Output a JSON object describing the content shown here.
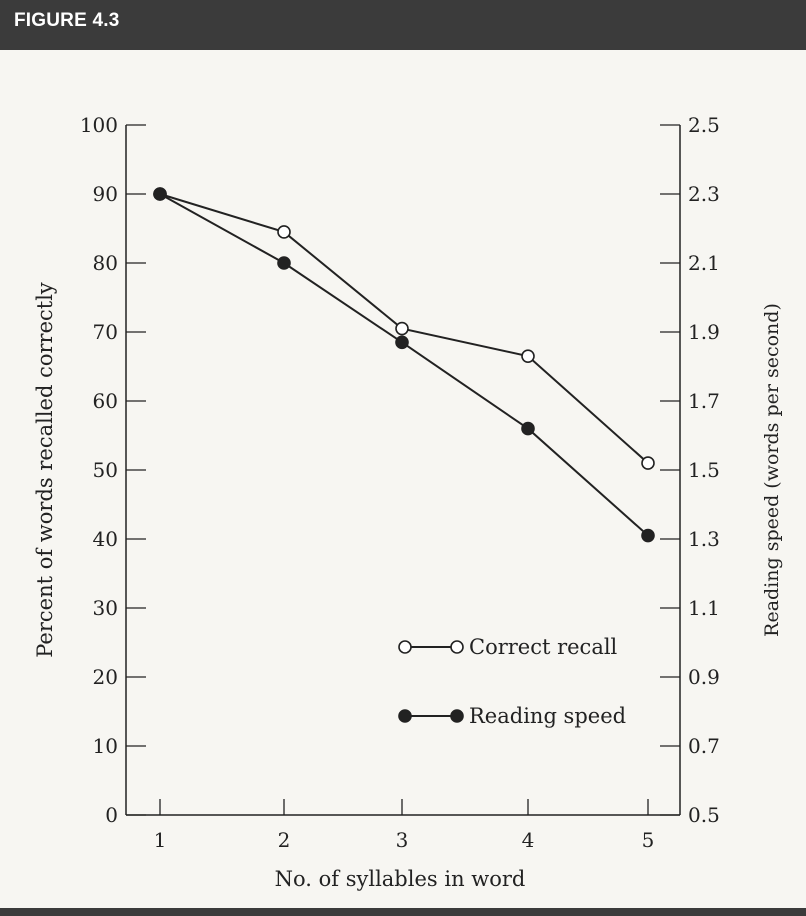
{
  "figure": {
    "label": "FIGURE 4.3"
  },
  "chart_data": {
    "type": "line",
    "x": [
      1,
      2,
      3,
      4,
      5
    ],
    "xlabel": "No. of syllables in word",
    "ylabel_left": "Percent of words recalled correctly",
    "ylabel_right": "Reading speed (words per second)",
    "ylim_left": [
      0,
      100
    ],
    "ylim_right": [
      0.5,
      2.5
    ],
    "yticks_left": [
      0,
      10,
      20,
      30,
      40,
      50,
      60,
      70,
      80,
      90,
      100
    ],
    "yticks_right": [
      "0.5",
      "0.7",
      "0.9",
      "1.1",
      "1.3",
      "1.5",
      "1.7",
      "1.9",
      "2.1",
      "2.3",
      "2.5"
    ],
    "grid": false,
    "legend_position": "bottom-right",
    "series": [
      {
        "name": "Correct recall",
        "axis": "left",
        "marker": "open-circle",
        "values": [
          90,
          84.5,
          70.5,
          66.5,
          51
        ]
      },
      {
        "name": "Reading speed",
        "axis": "right",
        "marker": "filled-circle",
        "values": [
          2.3,
          2.1,
          1.87,
          1.62,
          1.31
        ]
      }
    ]
  },
  "colors": {
    "ink": "#222222",
    "background": "#f7f6f2",
    "header": "#3b3b3b"
  }
}
